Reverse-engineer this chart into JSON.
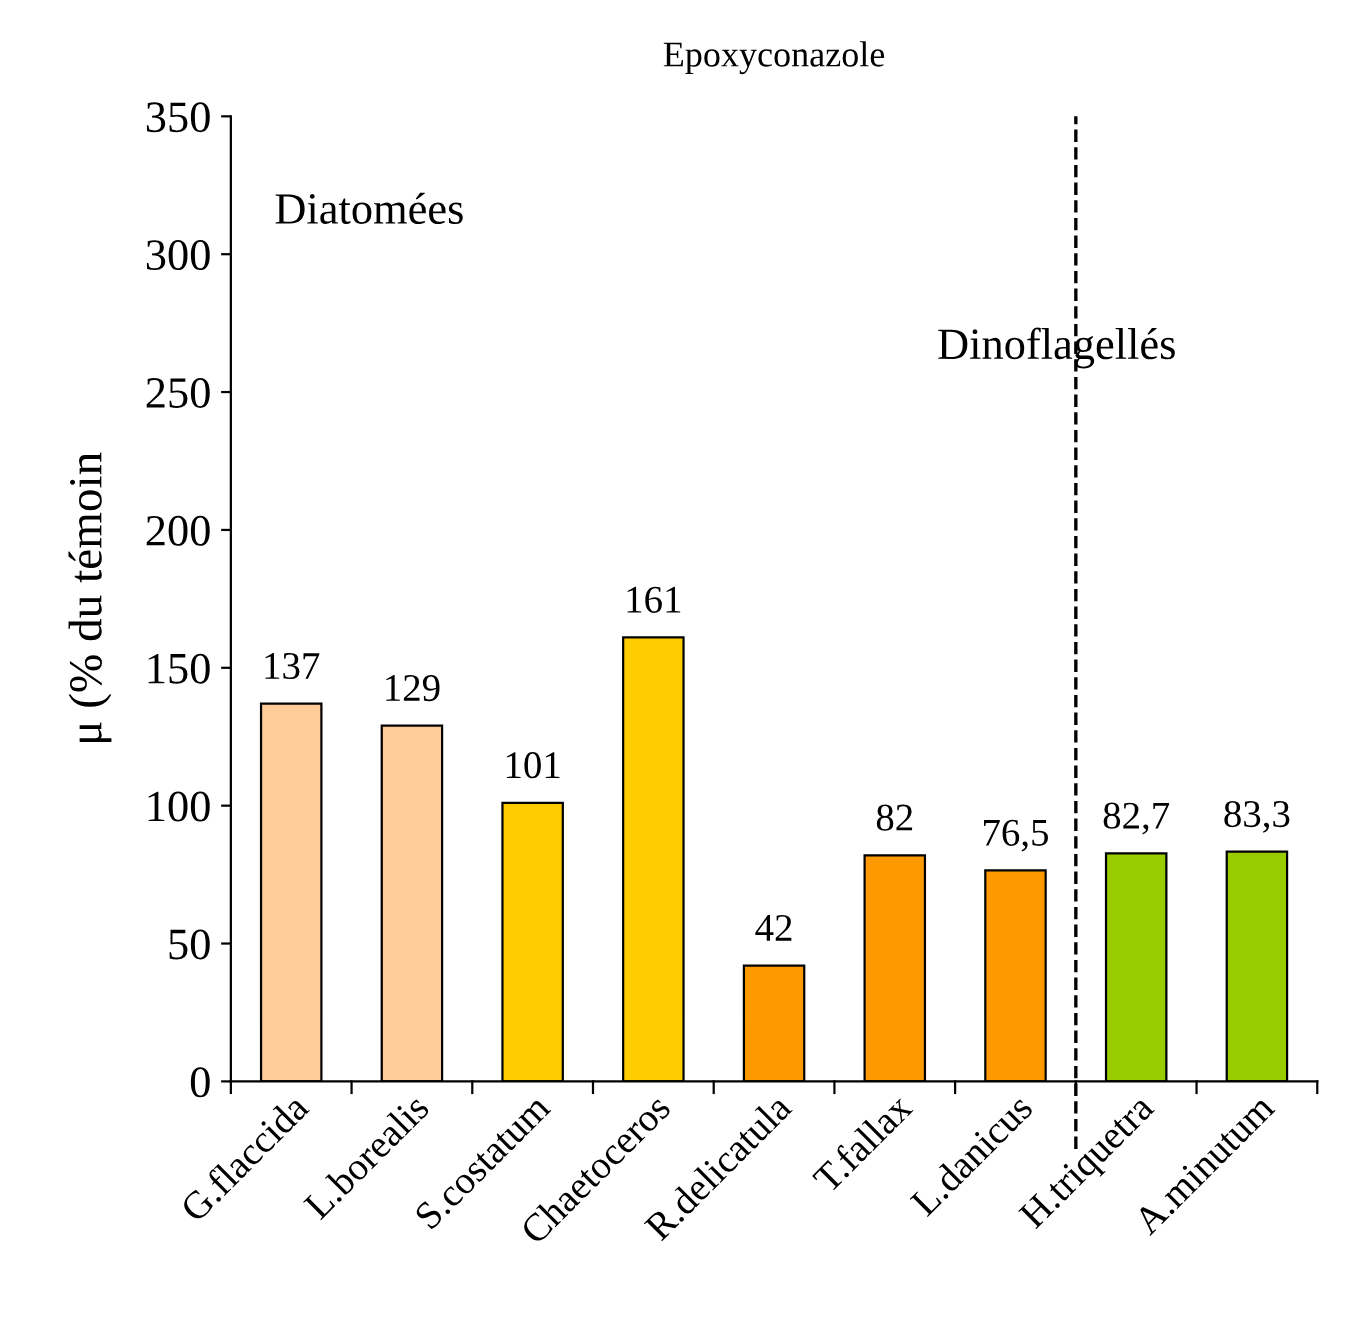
{
  "chart_data": {
    "type": "bar",
    "title": "Epoxyconazole",
    "ylabel": "μ (% du témoin",
    "categories": [
      "G.flaccida",
      "L.borealis",
      "S.costatum",
      "Chaetoceros",
      "R.delicatula",
      "T.fallax",
      "L.danicus",
      "H.triquetra",
      "A.minutum"
    ],
    "values": [
      137,
      129,
      101,
      161,
      42,
      82,
      76.5,
      82.7,
      83.3
    ],
    "colors": [
      "#ffcc99",
      "#ffcc99",
      "#ffcc00",
      "#ffcc00",
      "#ff9900",
      "#ff9900",
      "#ff9900",
      "#99cc00",
      "#99cc00"
    ],
    "value_labels": [
      "137",
      "129",
      "101",
      "161",
      "42",
      "82",
      "76,5",
      "82,7",
      "83,3"
    ],
    "ylim": [
      0,
      350
    ],
    "yticks": [
      0,
      50,
      100,
      150,
      200,
      250,
      300,
      350
    ],
    "grid": false,
    "annotations": [
      "Diatomées",
      "Dinoflagellés"
    ]
  }
}
